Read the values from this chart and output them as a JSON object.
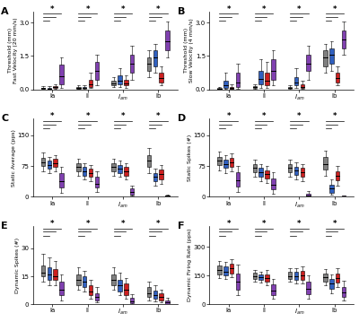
{
  "panel_labels": [
    "A",
    "B",
    "C",
    "D",
    "E",
    "F"
  ],
  "group_labels": [
    "Ia",
    "II",
    "$I_{am}$",
    "Ib"
  ],
  "color_order": [
    "gray",
    "blue",
    "red",
    "purple"
  ],
  "colors": {
    "gray": "#808080",
    "blue": "#3060C0",
    "red": "#CC2020",
    "purple": "#8040B0"
  },
  "panels": [
    {
      "key": "A",
      "ylabel": "Threshold (mm)\nFast Velocity (20 mm/s)",
      "ylim": [
        0,
        3.5
      ],
      "yticks": [
        0,
        1.5,
        3
      ],
      "data": {
        "Ia": {
          "gray": [
            0.02,
            0.04,
            0.06,
            0.09,
            0.14
          ],
          "blue": [
            0.02,
            0.03,
            0.05,
            0.08,
            0.14
          ],
          "red": [
            0.04,
            0.07,
            0.1,
            0.15,
            0.22
          ],
          "purple": [
            0.08,
            0.25,
            0.6,
            1.1,
            1.45
          ]
        },
        "II": {
          "gray": [
            0.02,
            0.04,
            0.07,
            0.1,
            0.18
          ],
          "blue": [
            0.04,
            0.06,
            0.09,
            0.13,
            0.2
          ],
          "red": [
            0.06,
            0.12,
            0.22,
            0.45,
            0.75
          ],
          "purple": [
            0.18,
            0.45,
            0.85,
            1.25,
            1.55
          ]
        },
        "Iam": {
          "gray": [
            0.1,
            0.18,
            0.28,
            0.38,
            0.55
          ],
          "blue": [
            0.12,
            0.22,
            0.38,
            0.65,
            0.95
          ],
          "red": [
            0.08,
            0.18,
            0.28,
            0.42,
            0.65
          ],
          "purple": [
            0.45,
            0.75,
            1.15,
            1.55,
            1.95
          ]
        },
        "Ib": {
          "gray": [
            0.55,
            0.85,
            1.15,
            1.45,
            1.75
          ],
          "blue": [
            0.75,
            1.05,
            1.45,
            1.75,
            2.05
          ],
          "red": [
            0.18,
            0.32,
            0.52,
            0.75,
            1.05
          ],
          "purple": [
            1.45,
            1.75,
            2.15,
            2.65,
            3.05
          ]
        }
      }
    },
    {
      "key": "B",
      "ylabel": "Threshold (mm)\nSlow Velocity (4 mm/s)",
      "ylim": [
        0,
        3.5
      ],
      "yticks": [
        0,
        1.5,
        3
      ],
      "data": {
        "Ia": {
          "gray": [
            0.02,
            0.03,
            0.05,
            0.08,
            0.11
          ],
          "blue": [
            0.04,
            0.08,
            0.18,
            0.38,
            0.75
          ],
          "red": [
            0.02,
            0.05,
            0.09,
            0.13,
            0.22
          ],
          "purple": [
            0.04,
            0.12,
            0.32,
            0.75,
            1.15
          ]
        },
        "II": {
          "gray": [
            0.04,
            0.07,
            0.11,
            0.16,
            0.23
          ],
          "blue": [
            0.08,
            0.22,
            0.48,
            0.85,
            1.35
          ],
          "red": [
            0.08,
            0.18,
            0.38,
            0.75,
            1.25
          ],
          "purple": [
            0.18,
            0.45,
            0.85,
            1.35,
            1.75
          ]
        },
        "Iam": {
          "gray": [
            0.04,
            0.07,
            0.09,
            0.13,
            0.18
          ],
          "blue": [
            0.08,
            0.18,
            0.32,
            0.55,
            0.95
          ],
          "red": [
            0.04,
            0.08,
            0.13,
            0.22,
            0.38
          ],
          "purple": [
            0.45,
            0.85,
            1.15,
            1.55,
            1.95
          ]
        },
        "Ib": {
          "gray": [
            0.75,
            1.05,
            1.45,
            1.75,
            2.05
          ],
          "blue": [
            0.85,
            1.15,
            1.55,
            1.85,
            2.15
          ],
          "red": [
            0.18,
            0.32,
            0.52,
            0.75,
            1.05
          ],
          "purple": [
            1.55,
            1.85,
            2.25,
            2.65,
            3.05
          ]
        }
      }
    },
    {
      "key": "C",
      "ylabel": "Static Average (pps)",
      "ylim": [
        0,
        190
      ],
      "yticks": [
        0,
        75,
        150
      ],
      "data": {
        "Ia": {
          "gray": [
            62,
            75,
            85,
            95,
            108
          ],
          "blue": [
            58,
            68,
            78,
            88,
            98
          ],
          "red": [
            62,
            72,
            82,
            92,
            102
          ],
          "purple": [
            10,
            22,
            38,
            58,
            72
          ]
        },
        "II": {
          "gray": [
            52,
            62,
            72,
            82,
            92
          ],
          "blue": [
            42,
            52,
            62,
            72,
            82
          ],
          "red": [
            38,
            48,
            58,
            68,
            78
          ],
          "purple": [
            12,
            22,
            32,
            48,
            62
          ]
        },
        "Iam": {
          "gray": [
            52,
            62,
            72,
            82,
            92
          ],
          "blue": [
            48,
            58,
            68,
            78,
            88
          ],
          "red": [
            42,
            52,
            62,
            72,
            82
          ],
          "purple": [
            2,
            5,
            12,
            20,
            28
          ]
        },
        "Ib": {
          "gray": [
            58,
            72,
            88,
            102,
            118
          ],
          "blue": [
            28,
            38,
            48,
            58,
            68
          ],
          "red": [
            32,
            42,
            55,
            66,
            78
          ],
          "purple": [
            0,
            1,
            2,
            4,
            6
          ]
        }
      }
    },
    {
      "key": "D",
      "ylabel": "Static Spikes (#)",
      "ylim": [
        0,
        190
      ],
      "yticks": [
        0,
        75,
        150
      ],
      "data": {
        "Ia": {
          "gray": [
            65,
            78,
            88,
            98,
            110
          ],
          "blue": [
            58,
            70,
            80,
            90,
            102
          ],
          "red": [
            62,
            74,
            84,
            94,
            106
          ],
          "purple": [
            12,
            24,
            40,
            60,
            75
          ]
        },
        "II": {
          "gray": [
            48,
            60,
            70,
            80,
            90
          ],
          "blue": [
            38,
            50,
            60,
            70,
            80
          ],
          "red": [
            33,
            45,
            55,
            65,
            75
          ],
          "purple": [
            8,
            18,
            30,
            45,
            60
          ]
        },
        "Iam": {
          "gray": [
            48,
            60,
            70,
            80,
            90
          ],
          "blue": [
            42,
            54,
            64,
            74,
            84
          ],
          "red": [
            38,
            50,
            60,
            70,
            80
          ],
          "purple": [
            0,
            1,
            4,
            8,
            14
          ]
        },
        "Ib": {
          "gray": [
            52,
            66,
            80,
            96,
            112
          ],
          "blue": [
            5,
            10,
            20,
            30,
            42
          ],
          "red": [
            28,
            40,
            52,
            63,
            75
          ],
          "purple": [
            0,
            0,
            1,
            2,
            4
          ]
        }
      }
    },
    {
      "key": "E",
      "ylabel": "Dynamic Spikes (#)",
      "ylim": [
        0,
        42
      ],
      "yticks": [
        0,
        15,
        30
      ],
      "data": {
        "Ia": {
          "gray": [
            12,
            15,
            17,
            21,
            27
          ],
          "blue": [
            10,
            13,
            16,
            20,
            25
          ],
          "red": [
            10,
            13,
            15,
            19,
            23
          ],
          "purple": [
            2,
            5,
            8,
            12,
            16
          ]
        },
        "II": {
          "gray": [
            8,
            10,
            13,
            16,
            20
          ],
          "blue": [
            7,
            9,
            12,
            15,
            18
          ],
          "red": [
            3,
            5,
            7,
            10,
            13
          ],
          "purple": [
            1,
            2,
            4,
            6,
            9
          ]
        },
        "Iam": {
          "gray": [
            8,
            10,
            13,
            16,
            20
          ],
          "blue": [
            5,
            7,
            10,
            13,
            17
          ],
          "red": [
            3,
            5,
            8,
            11,
            14
          ],
          "purple": [
            0,
            0.5,
            1.5,
            3.5,
            5.5
          ]
        },
        "Ib": {
          "gray": [
            2,
            4,
            6,
            9,
            12
          ],
          "blue": [
            1.5,
            3,
            5,
            7.5,
            10
          ],
          "red": [
            1,
            2,
            4,
            6,
            8
          ],
          "purple": [
            0,
            0,
            0.8,
            1.8,
            3.5
          ]
        }
      }
    },
    {
      "key": "F",
      "ylabel": "Dynamic Firing Rate (pps)",
      "ylim": [
        0,
        410
      ],
      "yticks": [
        0,
        150,
        300
      ],
      "data": {
        "Ia": {
          "gray": [
            138,
            158,
            178,
            203,
            228
          ],
          "blue": [
            132,
            152,
            172,
            198,
            222
          ],
          "red": [
            142,
            162,
            188,
            212,
            238
          ],
          "purple": [
            48,
            78,
            118,
            162,
            208
          ]
        },
        "II": {
          "gray": [
            118,
            133,
            146,
            163,
            178
          ],
          "blue": [
            112,
            128,
            143,
            158,
            172
          ],
          "red": [
            98,
            118,
            138,
            158,
            178
          ],
          "purple": [
            28,
            48,
            72,
            102,
            132
          ]
        },
        "Iam": {
          "gray": [
            118,
            133,
            148,
            168,
            188
          ],
          "blue": [
            108,
            128,
            148,
            168,
            188
          ],
          "red": [
            108,
            128,
            153,
            173,
            198
          ],
          "purple": [
            28,
            52,
            82,
            118,
            152
          ]
        },
        "Ib": {
          "gray": [
            98,
            118,
            142,
            162,
            182
          ],
          "blue": [
            58,
            82,
            108,
            132,
            158
          ],
          "red": [
            88,
            112,
            138,
            162,
            188
          ],
          "purple": [
            18,
            38,
            62,
            92,
            122
          ]
        }
      }
    }
  ]
}
